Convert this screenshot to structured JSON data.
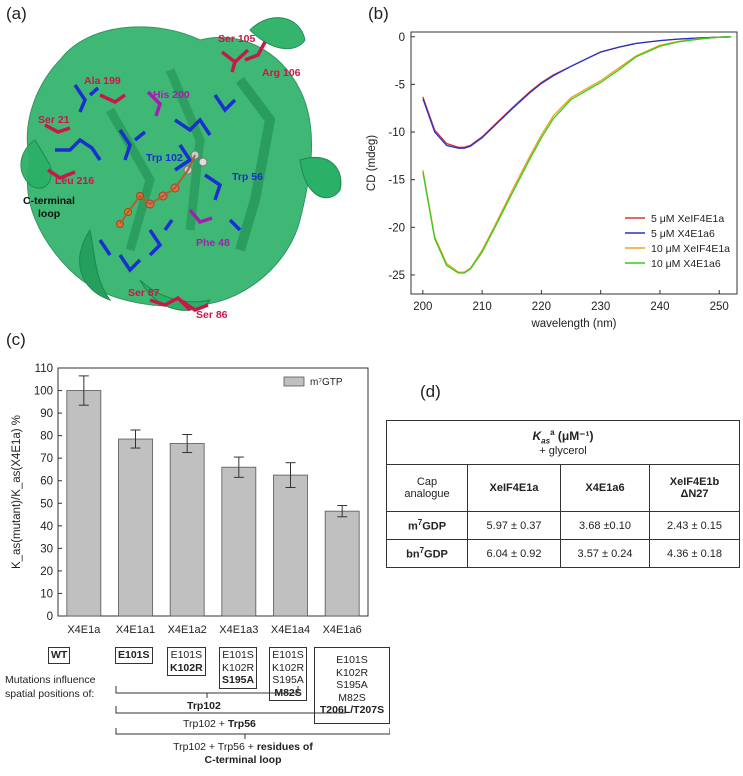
{
  "panels": {
    "a": "(a)",
    "b": "(b)",
    "c": "(c)",
    "d": "(d)"
  },
  "structure_labels": {
    "ser105": "Ser 105",
    "arg106": "Arg 106",
    "ala199": "Ala 199",
    "his200": "His 200",
    "ser21": "Ser 21",
    "trp102": "Trp 102",
    "trp56": "Trp 56",
    "leu216": "Leu 216",
    "cterm1": "C-terminal",
    "cterm2": "loop",
    "phe48": "Phe 48",
    "ser87": "Ser 87",
    "ser86": "Ser 86"
  },
  "colors": {
    "protein": "#2bb067",
    "red_residue": "#c8184a",
    "blue_residue": "#1a2fd0",
    "magenta": "#a020b0",
    "bar": "#c0c0c0"
  },
  "chart_data": [
    {
      "type": "line",
      "xlabel": "wavelength (nm)",
      "ylabel": "CD (mdeg)",
      "xlim": [
        198,
        253
      ],
      "ylim": [
        -27,
        0.5
      ],
      "xticks": [
        200,
        210,
        220,
        230,
        240,
        250
      ],
      "yticks": [
        0,
        -5,
        -10,
        -15,
        -20,
        -25
      ],
      "legend_position": "bottom-right",
      "x": [
        200,
        202,
        204,
        206,
        207,
        208,
        210,
        212,
        215,
        218,
        220,
        222,
        225,
        228,
        230,
        233,
        236,
        240,
        243,
        246,
        248,
        250,
        252
      ],
      "series": [
        {
          "name": "5 μM XeIF4E1a",
          "color": "#dd3333",
          "values": [
            -6.3,
            -9.8,
            -11.2,
            -11.6,
            -11.6,
            -11.4,
            -10.5,
            -9.3,
            -7.5,
            -5.8,
            -4.8,
            -4.0,
            -3.1,
            -2.2,
            -1.6,
            -1.1,
            -0.7,
            -0.4,
            -0.25,
            -0.15,
            -0.1,
            -0.05,
            0.0
          ]
        },
        {
          "name": "5 μM X4E1a6",
          "color": "#2233cc",
          "values": [
            -6.5,
            -10.0,
            -11.4,
            -11.7,
            -11.7,
            -11.5,
            -10.6,
            -9.4,
            -7.6,
            -5.9,
            -4.9,
            -4.1,
            -3.1,
            -2.2,
            -1.6,
            -1.1,
            -0.7,
            -0.4,
            -0.25,
            -0.15,
            -0.1,
            -0.05,
            0.0
          ]
        },
        {
          "name": "10 μM XeIF4E1a",
          "color": "#f0a020",
          "values": [
            -14.0,
            -21.0,
            -23.8,
            -24.7,
            -24.7,
            -24.3,
            -22.4,
            -20.0,
            -16.2,
            -12.6,
            -10.3,
            -8.3,
            -6.4,
            -5.3,
            -4.6,
            -3.3,
            -2.0,
            -0.9,
            -0.5,
            -0.25,
            -0.15,
            -0.05,
            0.0
          ]
        },
        {
          "name": "10 μM X4E1a6",
          "color": "#33cc22",
          "values": [
            -14.2,
            -21.2,
            -24.0,
            -24.8,
            -24.8,
            -24.4,
            -22.6,
            -20.2,
            -16.5,
            -12.9,
            -10.6,
            -8.6,
            -6.6,
            -5.5,
            -4.8,
            -3.5,
            -2.1,
            -1.0,
            -0.55,
            -0.3,
            -0.15,
            -0.05,
            0.0
          ]
        }
      ]
    },
    {
      "type": "bar",
      "ylabel": "K_as(mutant)/K_as(X4E1a) %",
      "ylim": [
        0,
        110
      ],
      "yticks": [
        0,
        10,
        20,
        30,
        40,
        50,
        60,
        70,
        80,
        90,
        100,
        110
      ],
      "legend_position": "top-right",
      "categories": [
        "X4E1a",
        "X4E1a1",
        "X4E1a2",
        "X4E1a3",
        "X4E1a4",
        "X4E1a6"
      ],
      "series": [
        {
          "name": "m⁷GTP",
          "values": [
            100,
            78.5,
            76.5,
            66,
            62.5,
            46.5
          ],
          "errors": [
            6.5,
            4,
            4,
            4.5,
            5.5,
            2.5
          ]
        }
      ]
    }
  ],
  "mutations": {
    "intro1": "Mutations influence",
    "intro2": "spatial positions of:",
    "wt": "WT",
    "e101s": "E101S",
    "k102r": "K102R",
    "s195a": "S195A",
    "m82s": "M82S",
    "t206": "T206L/T207S",
    "group1": "Trp102",
    "group2a": "Trp102 + ",
    "group2b": "Trp56",
    "group3a": "Trp102 + Trp56 + ",
    "group3b": "residues of",
    "group3c": "C-terminal loop"
  },
  "table": {
    "title_sym": "K",
    "title_sub": "as",
    "title_sup": "a",
    "title_unit": " (μM⁻¹)",
    "subtitle": "+ glycerol",
    "col0a": "Cap",
    "col0b": "analogue",
    "col1": "XeIF4E1a",
    "col2": "X4E1a6",
    "col3a": "XeIF4E1b",
    "col3b": "ΔN27",
    "rows": [
      {
        "label_pre": "m",
        "label_sup": "7",
        "label_post": "GDP",
        "v1": "5.97 ± 0.37",
        "v2": "3.68 ±0.10",
        "v3": "2.43 ± 0.15"
      },
      {
        "label_pre": "bn",
        "label_sup": "7",
        "label_post": "GDP",
        "v1": "6.04 ± 0.92",
        "v2": "3.57 ± 0.24",
        "v3": "4.36 ± 0.18"
      }
    ]
  }
}
